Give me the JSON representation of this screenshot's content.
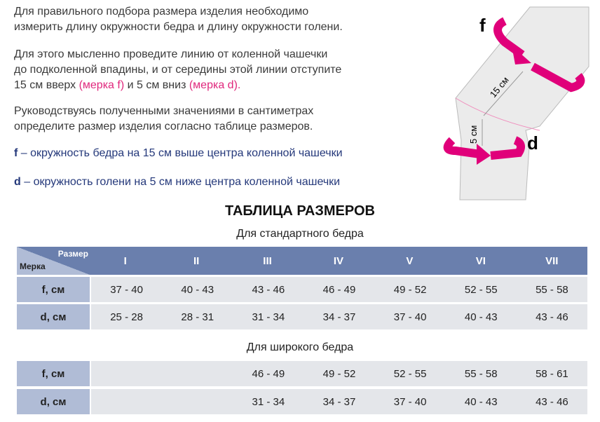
{
  "intro": [
    "Для правильного подбора размера изделия необходимо",
    "измерить длину окружности бедра и длину окружности голени."
  ],
  "instr": {
    "l1": "Для этого мысленно проведите линию от коленной чашечки",
    "l2": "до подколенной впадины, и от середины этой линии отступите",
    "l3a": "15 см вверх ",
    "l3b": "(мерка f)",
    "l3c": " и 5 см вниз ",
    "l3d": "(мерка d)."
  },
  "guide": [
    "Руководствуясь полученными значениями в сантиметрах",
    "определите размер изделия согласно таблице размеров."
  ],
  "def_f": {
    "key": "f",
    "text": " – окружность бедра на 15 см выше центра коленной чашечки"
  },
  "def_d": {
    "key": "d",
    "text": " – окружность голени на 5 см ниже центра коленной чашечки"
  },
  "diagram": {
    "f": "f",
    "d": "d",
    "dist15": "15 см",
    "dist5": "5 см",
    "colors": {
      "arrow": "#e0007a",
      "leg": "#ebebeb"
    }
  },
  "table": {
    "title": "ТАБЛИЦА РАЗМЕРОВ",
    "standard_caption": "Для стандартного бедра",
    "wide_caption": "Для широкого бедра",
    "corner_size": "Размер",
    "corner_measure": "Мерка",
    "sizes": [
      "I",
      "II",
      "III",
      "IV",
      "V",
      "VI",
      "VII"
    ],
    "standard": [
      {
        "label": "f, см",
        "values": [
          "37 - 40",
          "40 - 43",
          "43 - 46",
          "46 - 49",
          "49 - 52",
          "52 - 55",
          "55 - 58"
        ]
      },
      {
        "label": "d, см",
        "values": [
          "25 - 28",
          "28 - 31",
          "31 - 34",
          "34 - 37",
          "37 - 40",
          "40 - 43",
          "43 - 46"
        ]
      }
    ],
    "wide": [
      {
        "label": "f, см",
        "values": [
          "",
          "",
          "46 - 49",
          "49 - 52",
          "52 - 55",
          "55 - 58",
          "58 - 61"
        ]
      },
      {
        "label": "d, см",
        "values": [
          "",
          "",
          "31 - 34",
          "34 - 37",
          "37 - 40",
          "40 - 43",
          "43 - 46"
        ]
      }
    ],
    "colors": {
      "header": "#6a7fad",
      "label": "#b0bcd6",
      "cell": "#e4e6ea"
    }
  }
}
